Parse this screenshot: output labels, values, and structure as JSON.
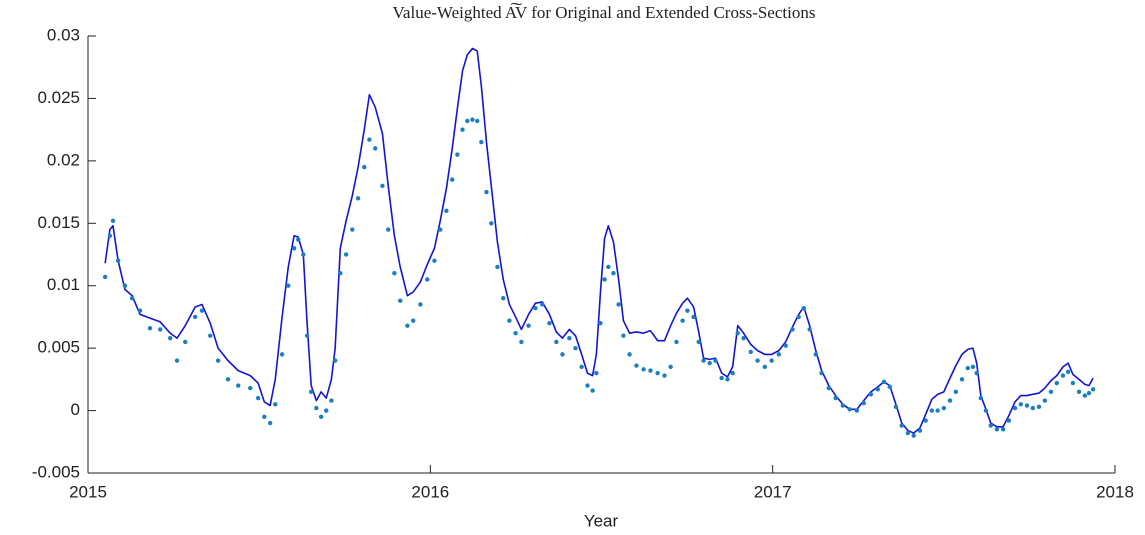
{
  "chart_data": {
    "type": "line",
    "title": "Value-Weighted A͠V for Original and Extended Cross-Sections",
    "xlabel": "Year",
    "xlim": [
      2015,
      2018
    ],
    "xticks": [
      2015,
      2016,
      2017,
      2018
    ],
    "ylim": [
      -0.005,
      0.03
    ],
    "yticks": [
      -0.005,
      0,
      0.005,
      0.01,
      0.015,
      0.02,
      0.025,
      0.03
    ],
    "grid": false,
    "x": [
      2015.05,
      2015.064,
      2015.073,
      2015.088,
      2015.108,
      2015.129,
      2015.152,
      2015.181,
      2015.211,
      2015.24,
      2015.26,
      2015.284,
      2015.313,
      2015.333,
      2015.357,
      2015.38,
      2015.409,
      2015.439,
      2015.474,
      2015.497,
      2015.515,
      2015.532,
      2015.547,
      2015.567,
      2015.585,
      2015.602,
      2015.614,
      2015.629,
      2015.64,
      2015.652,
      2015.667,
      2015.681,
      2015.696,
      2015.711,
      2015.722,
      2015.737,
      2015.754,
      2015.772,
      2015.789,
      2015.807,
      2015.822,
      2015.839,
      2015.86,
      2015.877,
      2015.895,
      2015.912,
      2015.933,
      2015.95,
      2015.971,
      2015.991,
      2016.012,
      2016.029,
      2016.047,
      2016.064,
      2016.079,
      2016.094,
      2016.108,
      2016.123,
      2016.137,
      2016.149,
      2016.164,
      2016.178,
      2016.196,
      2016.213,
      2016.231,
      2016.249,
      2016.266,
      2016.287,
      2016.307,
      2016.327,
      2016.348,
      2016.368,
      2016.386,
      2016.406,
      2016.424,
      2016.442,
      2016.459,
      2016.474,
      2016.485,
      2016.497,
      2016.509,
      2016.52,
      2016.535,
      2016.55,
      2016.564,
      2016.582,
      2016.602,
      2016.623,
      2016.643,
      2016.664,
      2016.684,
      2016.702,
      2016.719,
      2016.737,
      2016.751,
      2016.769,
      2016.784,
      2016.798,
      2016.816,
      2016.833,
      2016.851,
      2016.868,
      2016.883,
      2016.898,
      2016.915,
      2016.936,
      2016.956,
      2016.977,
      2016.997,
      2017.018,
      2017.038,
      2017.058,
      2017.076,
      2017.091,
      2017.108,
      2017.126,
      2017.143,
      2017.164,
      2017.184,
      2017.205,
      2017.225,
      2017.246,
      2017.266,
      2017.287,
      2017.307,
      2017.325,
      2017.342,
      2017.36,
      2017.377,
      2017.395,
      2017.412,
      2017.43,
      2017.447,
      2017.465,
      2017.482,
      2017.5,
      2017.518,
      2017.535,
      2017.553,
      2017.57,
      2017.585,
      2017.596,
      2017.608,
      2017.623,
      2017.637,
      2017.655,
      2017.673,
      2017.69,
      2017.708,
      2017.725,
      2017.743,
      2017.76,
      2017.778,
      2017.795,
      2017.813,
      2017.83,
      2017.848,
      2017.863,
      2017.877,
      2017.895,
      2017.912,
      2017.924,
      2017.936
    ],
    "series": [
      {
        "color": "#1414d4",
        "style": "solid",
        "values": [
          0.0118,
          0.0145,
          0.0148,
          0.012,
          0.0097,
          0.0092,
          0.0077,
          0.0074,
          0.0071,
          0.0062,
          0.0058,
          0.0068,
          0.0083,
          0.0085,
          0.007,
          0.005,
          0.004,
          0.0032,
          0.0028,
          0.0022,
          0.0007,
          0.0004,
          0.0025,
          0.0075,
          0.0115,
          0.014,
          0.0139,
          0.0125,
          0.007,
          0.002,
          0.0008,
          0.0015,
          0.001,
          0.0025,
          0.005,
          0.013,
          0.0152,
          0.0172,
          0.0195,
          0.0225,
          0.0253,
          0.0243,
          0.0222,
          0.018,
          0.014,
          0.0115,
          0.0092,
          0.0095,
          0.0103,
          0.0117,
          0.013,
          0.0152,
          0.0178,
          0.021,
          0.0242,
          0.0272,
          0.0285,
          0.029,
          0.0288,
          0.026,
          0.0215,
          0.018,
          0.0135,
          0.0105,
          0.0085,
          0.0075,
          0.0065,
          0.0077,
          0.0086,
          0.0087,
          0.0077,
          0.0063,
          0.0058,
          0.0065,
          0.006,
          0.0045,
          0.003,
          0.0028,
          0.0045,
          0.0095,
          0.0138,
          0.0148,
          0.0135,
          0.0105,
          0.0072,
          0.0062,
          0.0063,
          0.0062,
          0.0064,
          0.0056,
          0.0056,
          0.0068,
          0.0078,
          0.0086,
          0.009,
          0.0083,
          0.0063,
          0.0042,
          0.0041,
          0.0042,
          0.003,
          0.0027,
          0.0035,
          0.0068,
          0.0062,
          0.0053,
          0.0048,
          0.0045,
          0.0045,
          0.0048,
          0.0055,
          0.0067,
          0.0077,
          0.0083,
          0.0068,
          0.0048,
          0.0032,
          0.002,
          0.0012,
          0.0005,
          0.0001,
          0.0001,
          0.0008,
          0.0015,
          0.0019,
          0.0023,
          0.002,
          0.0005,
          -0.001,
          -0.0016,
          -0.0018,
          -0.0014,
          -0.0003,
          0.0009,
          0.0013,
          0.0015,
          0.0026,
          0.0036,
          0.0045,
          0.0049,
          0.005,
          0.0038,
          0.0012,
          0.0001,
          -0.001,
          -0.0013,
          -0.0013,
          -0.0004,
          0.0007,
          0.0012,
          0.0012,
          0.0013,
          0.0014,
          0.0018,
          0.0024,
          0.0028,
          0.0035,
          0.0038,
          0.0029,
          0.0025,
          0.0021,
          0.002,
          0.0026
        ]
      },
      {
        "color": "#1a7fc0",
        "style": "dots",
        "values": [
          0.0107,
          0.014,
          0.0152,
          0.012,
          0.01,
          0.009,
          0.008,
          0.0066,
          0.0065,
          0.0058,
          0.004,
          0.0055,
          0.0075,
          0.008,
          0.006,
          0.004,
          0.0025,
          0.002,
          0.0018,
          0.001,
          -0.0005,
          -0.001,
          0.0005,
          0.0045,
          0.01,
          0.013,
          0.0137,
          0.0125,
          0.006,
          0.0015,
          0.0002,
          -0.0005,
          0.0,
          0.0008,
          0.004,
          0.011,
          0.0125,
          0.0145,
          0.017,
          0.0195,
          0.0217,
          0.021,
          0.018,
          0.0145,
          0.011,
          0.0088,
          0.0068,
          0.0072,
          0.0085,
          0.0105,
          0.012,
          0.0145,
          0.016,
          0.0185,
          0.0205,
          0.0225,
          0.0232,
          0.0233,
          0.0232,
          0.0215,
          0.0175,
          0.015,
          0.0115,
          0.009,
          0.0072,
          0.0062,
          0.0055,
          0.0068,
          0.0082,
          0.0085,
          0.007,
          0.0055,
          0.0045,
          0.0058,
          0.005,
          0.0035,
          0.002,
          0.0016,
          0.003,
          0.007,
          0.0105,
          0.0115,
          0.011,
          0.0085,
          0.006,
          0.0045,
          0.0036,
          0.0033,
          0.0032,
          0.003,
          0.0028,
          0.0035,
          0.0055,
          0.0072,
          0.008,
          0.0075,
          0.0055,
          0.004,
          0.0038,
          0.004,
          0.0026,
          0.0025,
          0.003,
          0.0062,
          0.0058,
          0.0047,
          0.004,
          0.0035,
          0.004,
          0.0045,
          0.0052,
          0.0065,
          0.0075,
          0.0082,
          0.0065,
          0.0045,
          0.003,
          0.0018,
          0.001,
          0.0004,
          0.0001,
          0.0,
          0.0006,
          0.0013,
          0.0017,
          0.0023,
          0.0019,
          0.0003,
          -0.0012,
          -0.0018,
          -0.002,
          -0.0016,
          -0.0008,
          0.0,
          0.0,
          0.0002,
          0.0008,
          0.0015,
          0.0025,
          0.0034,
          0.0035,
          0.003,
          0.001,
          0.0,
          -0.0012,
          -0.0015,
          -0.0015,
          -0.0008,
          0.0002,
          0.0005,
          0.0004,
          0.0002,
          0.0003,
          0.0008,
          0.0015,
          0.0022,
          0.0028,
          0.0031,
          0.0022,
          0.0015,
          0.0012,
          0.0014,
          0.0017
        ]
      }
    ]
  }
}
